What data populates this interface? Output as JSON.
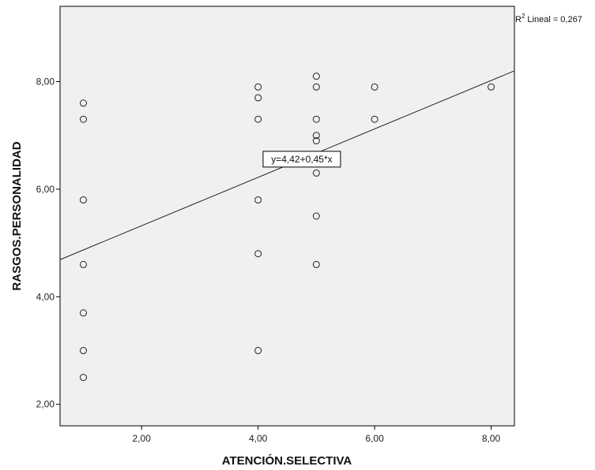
{
  "chart_data": {
    "type": "scatter",
    "xlabel": "ATENCIÓN.SELECTIVA",
    "ylabel": "RASGOS.PERSONALIDAD",
    "xlim": [
      0.6,
      8.4
    ],
    "ylim": [
      1.6,
      9.4
    ],
    "x_ticks": [
      2,
      4,
      6,
      8
    ],
    "x_tick_labels": [
      "2,00",
      "4,00",
      "6,00",
      "8,00"
    ],
    "y_ticks": [
      2,
      4,
      6,
      8
    ],
    "y_tick_labels": [
      "2,00",
      "4,00",
      "6,00",
      "8,00"
    ],
    "grid": false,
    "background_color": "#f0f0f0",
    "points": [
      {
        "x": 1,
        "y": 7.6
      },
      {
        "x": 1,
        "y": 7.3
      },
      {
        "x": 1,
        "y": 5.8
      },
      {
        "x": 1,
        "y": 4.6
      },
      {
        "x": 1,
        "y": 3.7
      },
      {
        "x": 1,
        "y": 3.0
      },
      {
        "x": 1,
        "y": 2.5
      },
      {
        "x": 4,
        "y": 7.9
      },
      {
        "x": 4,
        "y": 7.7
      },
      {
        "x": 4,
        "y": 7.3
      },
      {
        "x": 4,
        "y": 5.8
      },
      {
        "x": 4,
        "y": 4.8
      },
      {
        "x": 4,
        "y": 3.0
      },
      {
        "x": 5,
        "y": 8.1
      },
      {
        "x": 5,
        "y": 7.9
      },
      {
        "x": 5,
        "y": 7.3
      },
      {
        "x": 5,
        "y": 7.0
      },
      {
        "x": 5,
        "y": 6.9
      },
      {
        "x": 5,
        "y": 6.6
      },
      {
        "x": 5,
        "y": 6.3
      },
      {
        "x": 5,
        "y": 5.5
      },
      {
        "x": 5,
        "y": 4.6
      },
      {
        "x": 6,
        "y": 7.9
      },
      {
        "x": 6,
        "y": 7.3
      },
      {
        "x": 8,
        "y": 7.9
      }
    ],
    "fit_line": {
      "intercept": 4.42,
      "slope": 0.45
    },
    "fit_equation_label": "y=4,42+0,45*x",
    "fit_equation_at_x": 4.75,
    "r2_label": "Lineal = 0,267",
    "r2_prefix": "R",
    "r2_superscript": "2"
  }
}
